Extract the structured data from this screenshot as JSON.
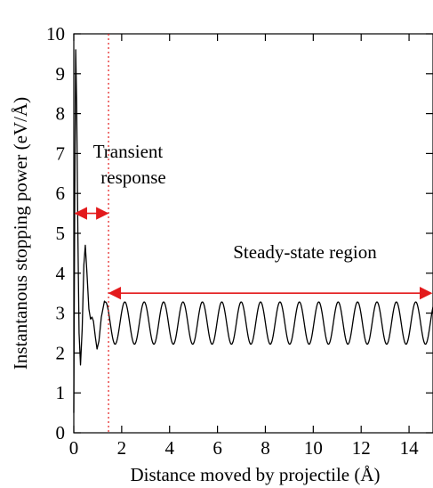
{
  "chart_data": {
    "type": "line",
    "xlabel": "Distance moved by projectile (Å)",
    "ylabel": "Instantanous stopping power (eV/Å)",
    "xlim": [
      0,
      15
    ],
    "ylim": [
      0,
      10
    ],
    "x_ticks": [
      0,
      2,
      4,
      6,
      8,
      10,
      12,
      14
    ],
    "y_ticks": [
      0,
      1,
      2,
      3,
      4,
      5,
      6,
      7,
      8,
      9,
      10
    ],
    "grid": false,
    "legend": "none",
    "series": [
      {
        "color": "#000000",
        "transient_points": [
          [
            0.0,
            0.5
          ],
          [
            0.04,
            6.0
          ],
          [
            0.08,
            9.6
          ],
          [
            0.12,
            8.2
          ],
          [
            0.17,
            5.0
          ],
          [
            0.22,
            2.5
          ],
          [
            0.28,
            1.7
          ],
          [
            0.35,
            2.6
          ],
          [
            0.42,
            4.2
          ],
          [
            0.48,
            4.7
          ],
          [
            0.55,
            4.0
          ],
          [
            0.63,
            3.1
          ],
          [
            0.7,
            2.85
          ],
          [
            0.76,
            2.9
          ],
          [
            0.82,
            2.8
          ],
          [
            0.9,
            2.4
          ],
          [
            0.97,
            2.1
          ],
          [
            1.05,
            2.3
          ],
          [
            1.15,
            2.9
          ],
          [
            1.28,
            3.3
          ]
        ],
        "steady_state": {
          "start_x": 1.28,
          "end_x": 15.0,
          "period": 0.81,
          "center": 2.75,
          "amplitude": 0.53,
          "first_peak_x": 1.32
        }
      }
    ],
    "vertical_line": {
      "x": 1.45,
      "color": "#e31a1c",
      "style": "dotted"
    },
    "annotations": {
      "transient_label_lines": [
        "Transient",
        "response"
      ],
      "transient_arrow": {
        "x0": 0.0,
        "x1": 1.45,
        "y": 5.5
      },
      "steady_label": "Steady-state region",
      "steady_arrow": {
        "x0": 1.45,
        "x1": 15.0,
        "y": 3.5
      },
      "arrow_color": "#e31a1c"
    }
  }
}
